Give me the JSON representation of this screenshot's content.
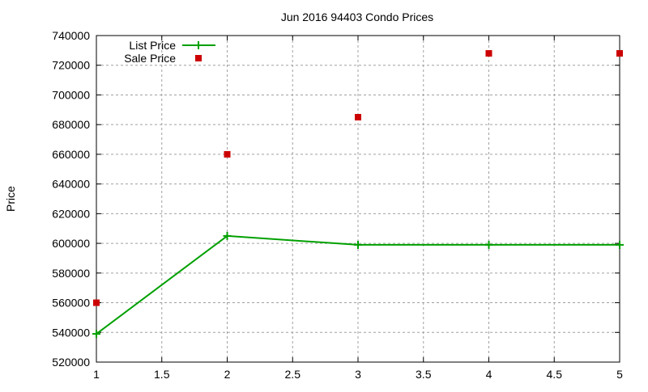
{
  "chart_data": {
    "type": "line",
    "title": "Jun 2016 94403 Condo Prices",
    "xlabel": "",
    "ylabel": "Price",
    "x": [
      1,
      2,
      3,
      4,
      5
    ],
    "series": [
      {
        "name": "List Price",
        "style": "line+points",
        "color": "#00a000",
        "values": [
          539000,
          605000,
          599000,
          599000,
          599000
        ]
      },
      {
        "name": "Sale Price",
        "style": "points",
        "color": "#cc0000",
        "values": [
          560000,
          660000,
          685000,
          728000,
          728000
        ]
      }
    ],
    "xlim": [
      1,
      5
    ],
    "ylim": [
      520000,
      740000
    ],
    "xticks": [
      "1",
      "1.5",
      "2",
      "2.5",
      "3",
      "3.5",
      "4",
      "4.5",
      "5"
    ],
    "yticks": [
      "520000",
      "540000",
      "560000",
      "580000",
      "600000",
      "620000",
      "640000",
      "660000",
      "680000",
      "700000",
      "720000",
      "740000"
    ],
    "grid": true,
    "legend_position": "top-left"
  }
}
